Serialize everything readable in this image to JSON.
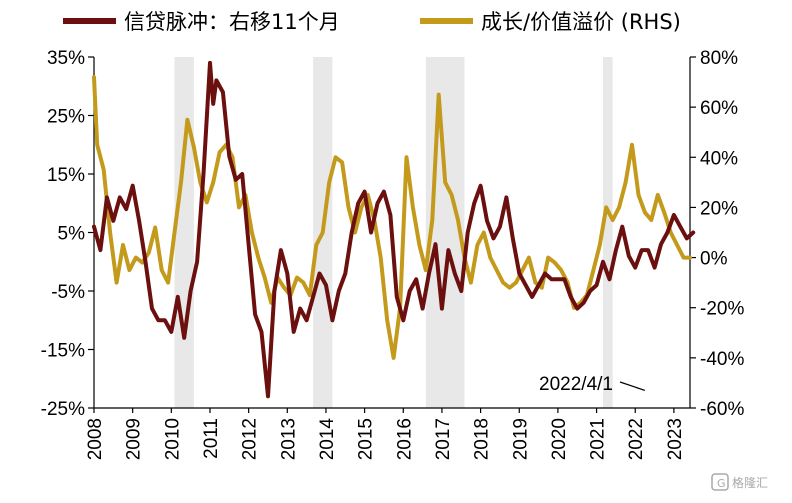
{
  "chart_data": {
    "type": "line",
    "colors": {
      "credit": "#6b0f0f",
      "premium": "#c49a1c",
      "shade": "#e8e8e8"
    },
    "legend": {
      "position": "top"
    },
    "x_range": [
      "2008-01",
      "2023-06"
    ],
    "x_tick_labels": [
      "2008",
      "2009",
      "2010",
      "2011",
      "2012",
      "2013",
      "2014",
      "2015",
      "2016",
      "2017",
      "2018",
      "2019",
      "2020",
      "2021",
      "2022",
      "2023"
    ],
    "y_left": {
      "min": -25,
      "max": 35,
      "tick_labels": [
        "35%",
        "25%",
        "15%",
        "5%",
        "-5%",
        "-15%",
        "-25%"
      ]
    },
    "y_right": {
      "min": -60,
      "max": 80,
      "tick_labels": [
        "80%",
        "60%",
        "40%",
        "20%",
        "0%",
        "-20%",
        "-40%",
        "-60%"
      ]
    },
    "shaded_periods": [
      [
        "2010-02",
        "2010-08"
      ],
      [
        "2013-09",
        "2014-03"
      ],
      [
        "2016-08",
        "2017-08"
      ],
      [
        "2021-03",
        "2021-06"
      ]
    ],
    "series": [
      {
        "name": "信贷脉冲：右移11个月",
        "axis": "left",
        "points": [
          [
            "2008-01",
            6
          ],
          [
            "2008-03",
            2
          ],
          [
            "2008-05",
            11
          ],
          [
            "2008-07",
            7
          ],
          [
            "2008-09",
            11
          ],
          [
            "2008-11",
            9
          ],
          [
            "2009-01",
            13
          ],
          [
            "2009-03",
            7
          ],
          [
            "2009-05",
            0
          ],
          [
            "2009-07",
            -8
          ],
          [
            "2009-09",
            -10
          ],
          [
            "2009-11",
            -10
          ],
          [
            "2010-01",
            -12
          ],
          [
            "2010-03",
            -6
          ],
          [
            "2010-05",
            -13
          ],
          [
            "2010-07",
            -5
          ],
          [
            "2010-09",
            0
          ],
          [
            "2010-11",
            15
          ],
          [
            "2011-01",
            34
          ],
          [
            "2011-02",
            27
          ],
          [
            "2011-03",
            31
          ],
          [
            "2011-05",
            29
          ],
          [
            "2011-07",
            18
          ],
          [
            "2011-09",
            14
          ],
          [
            "2011-11",
            15
          ],
          [
            "2012-01",
            3
          ],
          [
            "2012-03",
            -9
          ],
          [
            "2012-05",
            -12
          ],
          [
            "2012-07",
            -23
          ],
          [
            "2012-09",
            -5
          ],
          [
            "2012-11",
            2
          ],
          [
            "2013-01",
            -2
          ],
          [
            "2013-03",
            -12
          ],
          [
            "2013-05",
            -8
          ],
          [
            "2013-07",
            -10
          ],
          [
            "2013-09",
            -6
          ],
          [
            "2013-11",
            -2
          ],
          [
            "2014-01",
            -4
          ],
          [
            "2014-03",
            -10
          ],
          [
            "2014-05",
            -5
          ],
          [
            "2014-07",
            -2
          ],
          [
            "2014-09",
            5
          ],
          [
            "2014-11",
            10
          ],
          [
            "2015-01",
            12
          ],
          [
            "2015-03",
            5
          ],
          [
            "2015-05",
            10
          ],
          [
            "2015-07",
            12
          ],
          [
            "2015-09",
            8
          ],
          [
            "2015-11",
            -6
          ],
          [
            "2016-01",
            -10
          ],
          [
            "2016-03",
            -5
          ],
          [
            "2016-05",
            -3
          ],
          [
            "2016-07",
            -8
          ],
          [
            "2016-09",
            -2
          ],
          [
            "2016-11",
            3
          ],
          [
            "2017-01",
            -8
          ],
          [
            "2017-03",
            2
          ],
          [
            "2017-05",
            -2
          ],
          [
            "2017-07",
            -5
          ],
          [
            "2017-09",
            5
          ],
          [
            "2017-11",
            10
          ],
          [
            "2018-01",
            13
          ],
          [
            "2018-03",
            7
          ],
          [
            "2018-05",
            4
          ],
          [
            "2018-07",
            6
          ],
          [
            "2018-09",
            11
          ],
          [
            "2018-11",
            4
          ],
          [
            "2019-01",
            -2
          ],
          [
            "2019-03",
            -4
          ],
          [
            "2019-05",
            -6
          ],
          [
            "2019-07",
            -4
          ],
          [
            "2019-09",
            -2
          ],
          [
            "2019-11",
            -3
          ],
          [
            "2020-01",
            -3
          ],
          [
            "2020-03",
            -3
          ],
          [
            "2020-05",
            -6
          ],
          [
            "2020-07",
            -8
          ],
          [
            "2020-09",
            -7
          ],
          [
            "2020-11",
            -5
          ],
          [
            "2021-01",
            -4
          ],
          [
            "2021-03",
            0
          ],
          [
            "2021-05",
            -3
          ],
          [
            "2021-07",
            2
          ],
          [
            "2021-09",
            6
          ],
          [
            "2021-11",
            1
          ],
          [
            "2022-01",
            -1
          ],
          [
            "2022-03",
            2
          ],
          [
            "2022-05",
            2
          ],
          [
            "2022-07",
            -1
          ],
          [
            "2022-09",
            3
          ],
          [
            "2022-11",
            5
          ],
          [
            "2023-01",
            8
          ],
          [
            "2023-03",
            6
          ],
          [
            "2023-05",
            4
          ],
          [
            "2023-07",
            5
          ]
        ]
      },
      {
        "name": "成长/价值溢价 (RHS)",
        "axis": "right",
        "points": [
          [
            "2008-01",
            72
          ],
          [
            "2008-02",
            45
          ],
          [
            "2008-04",
            35
          ],
          [
            "2008-06",
            10
          ],
          [
            "2008-08",
            -10
          ],
          [
            "2008-10",
            5
          ],
          [
            "2008-12",
            -5
          ],
          [
            "2009-02",
            0
          ],
          [
            "2009-04",
            -2
          ],
          [
            "2009-06",
            2
          ],
          [
            "2009-08",
            12
          ],
          [
            "2009-10",
            -5
          ],
          [
            "2009-12",
            -10
          ],
          [
            "2010-02",
            10
          ],
          [
            "2010-04",
            30
          ],
          [
            "2010-06",
            55
          ],
          [
            "2010-08",
            44
          ],
          [
            "2010-10",
            30
          ],
          [
            "2010-12",
            22
          ],
          [
            "2011-02",
            30
          ],
          [
            "2011-04",
            42
          ],
          [
            "2011-06",
            45
          ],
          [
            "2011-08",
            40
          ],
          [
            "2011-10",
            20
          ],
          [
            "2011-12",
            25
          ],
          [
            "2012-02",
            10
          ],
          [
            "2012-04",
            0
          ],
          [
            "2012-06",
            -8
          ],
          [
            "2012-08",
            -18
          ],
          [
            "2012-10",
            -8
          ],
          [
            "2012-12",
            -12
          ],
          [
            "2013-02",
            -15
          ],
          [
            "2013-04",
            -8
          ],
          [
            "2013-06",
            -10
          ],
          [
            "2013-08",
            -15
          ],
          [
            "2013-10",
            5
          ],
          [
            "2013-12",
            10
          ],
          [
            "2014-02",
            30
          ],
          [
            "2014-04",
            40
          ],
          [
            "2014-06",
            38
          ],
          [
            "2014-08",
            20
          ],
          [
            "2014-10",
            10
          ],
          [
            "2014-12",
            20
          ],
          [
            "2015-02",
            25
          ],
          [
            "2015-04",
            15
          ],
          [
            "2015-06",
            0
          ],
          [
            "2015-08",
            -25
          ],
          [
            "2015-10",
            -40
          ],
          [
            "2015-12",
            -20
          ],
          [
            "2016-02",
            40
          ],
          [
            "2016-04",
            20
          ],
          [
            "2016-06",
            5
          ],
          [
            "2016-08",
            -5
          ],
          [
            "2016-10",
            15
          ],
          [
            "2016-12",
            65
          ],
          [
            "2017-02",
            30
          ],
          [
            "2017-04",
            25
          ],
          [
            "2017-06",
            15
          ],
          [
            "2017-08",
            0
          ],
          [
            "2017-10",
            -10
          ],
          [
            "2017-12",
            5
          ],
          [
            "2018-02",
            10
          ],
          [
            "2018-04",
            0
          ],
          [
            "2018-06",
            -5
          ],
          [
            "2018-08",
            -10
          ],
          [
            "2018-10",
            -12
          ],
          [
            "2018-12",
            -10
          ],
          [
            "2019-02",
            -5
          ],
          [
            "2019-04",
            0
          ],
          [
            "2019-06",
            -10
          ],
          [
            "2019-08",
            -12
          ],
          [
            "2019-10",
            0
          ],
          [
            "2019-12",
            -2
          ],
          [
            "2020-02",
            -5
          ],
          [
            "2020-04",
            -10
          ],
          [
            "2020-06",
            -20
          ],
          [
            "2020-08",
            -18
          ],
          [
            "2020-10",
            -15
          ],
          [
            "2020-12",
            -5
          ],
          [
            "2021-02",
            5
          ],
          [
            "2021-04",
            20
          ],
          [
            "2021-06",
            15
          ],
          [
            "2021-08",
            20
          ],
          [
            "2021-10",
            30
          ],
          [
            "2021-12",
            45
          ],
          [
            "2022-02",
            25
          ],
          [
            "2022-04",
            18
          ],
          [
            "2022-06",
            15
          ],
          [
            "2022-08",
            25
          ],
          [
            "2022-10",
            18
          ],
          [
            "2022-12",
            10
          ],
          [
            "2023-02",
            5
          ],
          [
            "2023-04",
            0
          ],
          [
            "2023-06",
            0
          ]
        ]
      }
    ],
    "annotations": [
      {
        "text": "2022/4/1",
        "at": [
          "2022-04",
          -22
        ],
        "axis": "left"
      }
    ]
  },
  "watermark": {
    "text": "格隆汇"
  }
}
